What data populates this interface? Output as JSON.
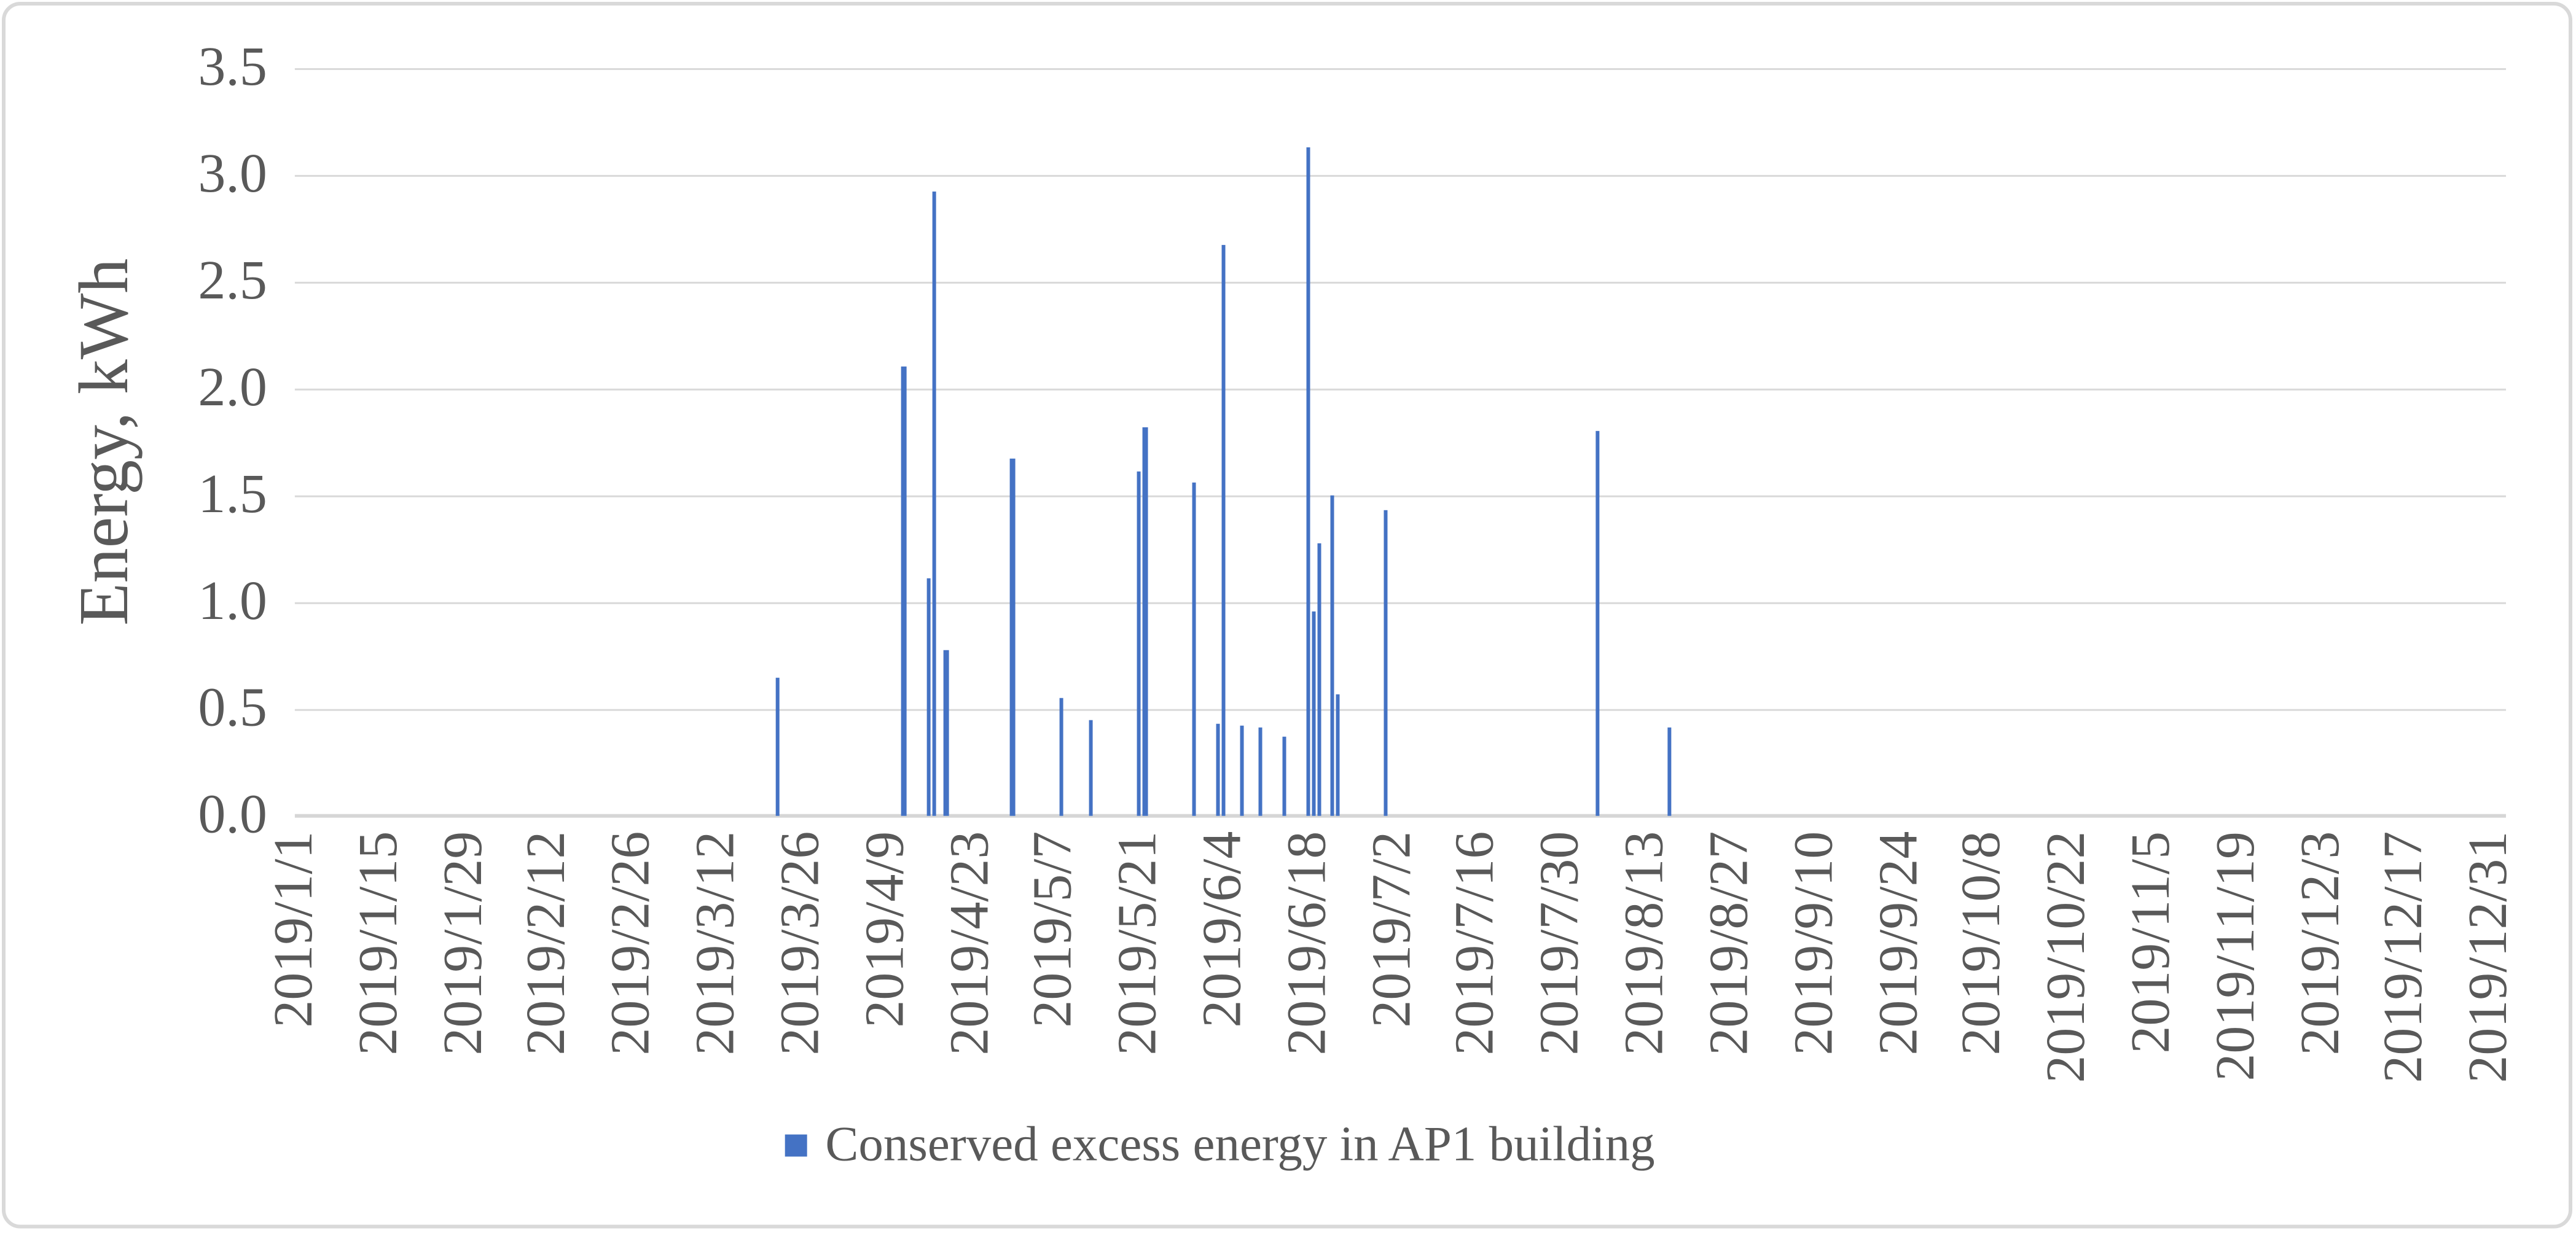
{
  "chart_data": {
    "type": "bar",
    "title": "",
    "ylabel": "Energy, kWh",
    "xlabel": "",
    "ylim": [
      0,
      3.5
    ],
    "ytick_step": 0.5,
    "grid": "horizontal-only",
    "legend_position": "bottom-center",
    "ytick_labels": [
      "0.0",
      "0.5",
      "1.0",
      "1.5",
      "2.0",
      "2.5",
      "3.0",
      "3.5"
    ],
    "xtick_labels": [
      "2019/1/1",
      "2019/1/15",
      "2019/1/29",
      "2019/2/12",
      "2019/2/26",
      "2019/3/12",
      "2019/3/26",
      "2019/4/9",
      "2019/4/23",
      "2019/5/7",
      "2019/5/21",
      "2019/6/4",
      "2019/6/18",
      "2019/7/2",
      "2019/7/16",
      "2019/7/30",
      "2019/8/13",
      "2019/8/27",
      "2019/9/10",
      "2019/9/24",
      "2019/10/8",
      "2019/10/22",
      "2019/11/5",
      "2019/11/19",
      "2019/12/3",
      "2019/12/17",
      "2019/12/31"
    ],
    "x_axis_start": "2019/1/1",
    "x_axis_end": "2019/12/31",
    "legend": {
      "label": "Conserved excess energy in AP1 building",
      "marker_color": "#4472C4"
    },
    "series": [
      {
        "name": "Conserved excess energy in AP1 building",
        "color": "#4472C4",
        "points": [
          {
            "date": "2019/3/22",
            "value": 0.65
          },
          {
            "date": "2019/4/12",
            "value": 2.1
          },
          {
            "date": "2019/4/16",
            "value": 1.11
          },
          {
            "date": "2019/4/17",
            "value": 2.92
          },
          {
            "date": "2019/4/19",
            "value": 0.78
          },
          {
            "date": "2019/4/30",
            "value": 1.67
          },
          {
            "date": "2019/5/8",
            "value": 0.55
          },
          {
            "date": "2019/5/13",
            "value": 0.45
          },
          {
            "date": "2019/5/21",
            "value": 1.61
          },
          {
            "date": "2019/5/22",
            "value": 1.82
          },
          {
            "date": "2019/5/30",
            "value": 1.56
          },
          {
            "date": "2019/6/3",
            "value": 0.43
          },
          {
            "date": "2019/6/4",
            "value": 2.67
          },
          {
            "date": "2019/6/7",
            "value": 0.42
          },
          {
            "date": "2019/6/10",
            "value": 0.41
          },
          {
            "date": "2019/6/14",
            "value": 0.37
          },
          {
            "date": "2019/6/18",
            "value": 3.13
          },
          {
            "date": "2019/6/19",
            "value": 0.96
          },
          {
            "date": "2019/6/20",
            "value": 1.28
          },
          {
            "date": "2019/6/22",
            "value": 1.5
          },
          {
            "date": "2019/6/23",
            "value": 0.57
          },
          {
            "date": "2019/7/1",
            "value": 1.43
          },
          {
            "date": "2019/8/5",
            "value": 1.8
          },
          {
            "date": "2019/8/17",
            "value": 0.41
          }
        ]
      }
    ],
    "colors": {
      "bar": "#4472C4",
      "gridline": "#D9D9D9",
      "axis_text": "#595959",
      "chart_border": "#D9D9D9",
      "background": "#FFFFFF"
    }
  }
}
